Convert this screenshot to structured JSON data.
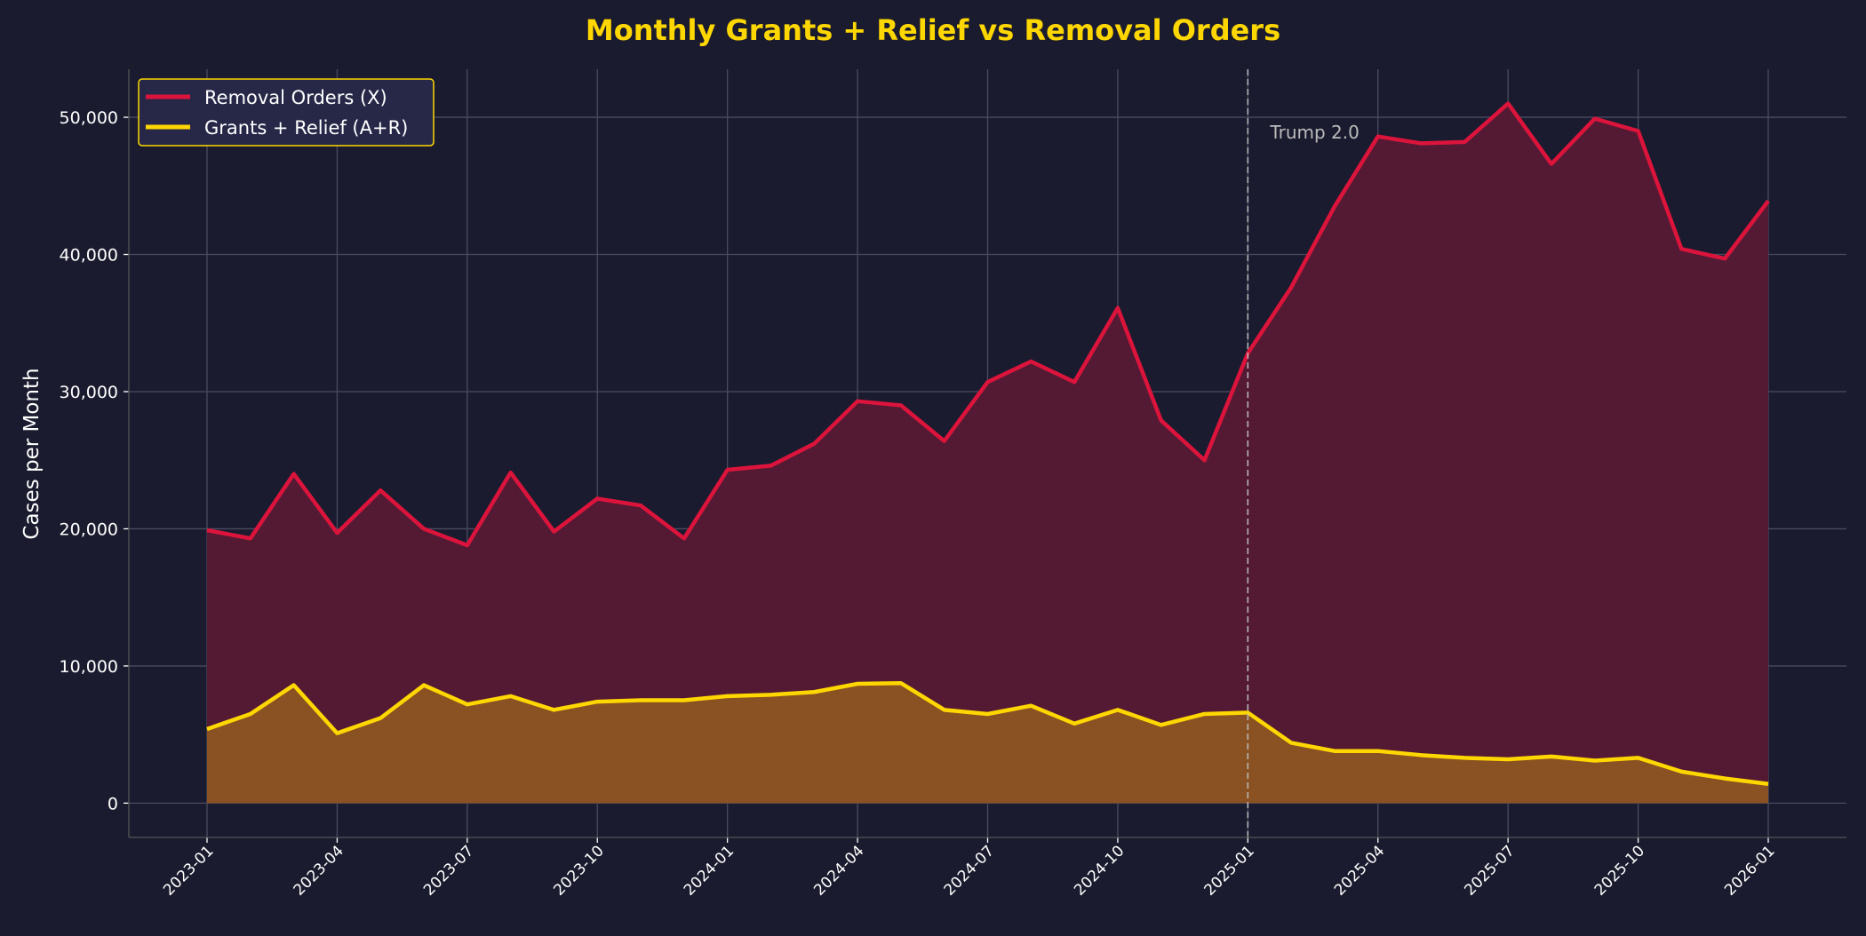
{
  "chart_data": {
    "type": "area",
    "title": "Monthly Grants + Relief vs Removal Orders",
    "xlabel": "",
    "ylabel": "Cases per Month",
    "ylim": [
      -2500,
      53500
    ],
    "yticks": [
      0,
      10000,
      20000,
      30000,
      40000,
      50000
    ],
    "ytick_labels": [
      "0",
      "10,000",
      "20,000",
      "30,000",
      "40,000",
      "50,000"
    ],
    "xtick_labels": [
      "2023-01",
      "2023-04",
      "2023-07",
      "2023-10",
      "2024-01",
      "2024-04",
      "2024-07",
      "2024-10",
      "2025-01",
      "2025-04",
      "2025-07",
      "2025-10",
      "2026-01"
    ],
    "grid": true,
    "legend_position": "top-left",
    "x": [
      "2023-01",
      "2023-02",
      "2023-03",
      "2023-04",
      "2023-05",
      "2023-06",
      "2023-07",
      "2023-08",
      "2023-09",
      "2023-10",
      "2023-11",
      "2023-12",
      "2024-01",
      "2024-02",
      "2024-03",
      "2024-04",
      "2024-05",
      "2024-06",
      "2024-07",
      "2024-08",
      "2024-09",
      "2024-10",
      "2024-11",
      "2024-12",
      "2025-01",
      "2025-02",
      "2025-03",
      "2025-04",
      "2025-05",
      "2025-06",
      "2025-07",
      "2025-08",
      "2025-09",
      "2025-10",
      "2025-11",
      "2025-12",
      "2026-01"
    ],
    "series": [
      {
        "name": "Removal Orders (X)",
        "color": "#dc143c",
        "fill": "#541a34",
        "values": [
          19900,
          19300,
          24000,
          19700,
          22800,
          20000,
          18800,
          24100,
          19800,
          22200,
          21700,
          19300,
          24300,
          24600,
          26200,
          29300,
          29000,
          26400,
          30700,
          32200,
          30700,
          36100,
          27900,
          25000,
          32800,
          37600,
          43500,
          48600,
          48100,
          48200,
          51000,
          46600,
          49900,
          49000,
          40400,
          39700,
          43900
        ]
      },
      {
        "name": "Grants + Relief (A+R)",
        "color": "#ffd700",
        "fill": "#8a5222",
        "values": [
          5400,
          6500,
          8600,
          5100,
          6200,
          8600,
          7200,
          7800,
          6800,
          7400,
          7500,
          7500,
          7800,
          7900,
          8100,
          8700,
          8750,
          6800,
          6500,
          7100,
          5800,
          6800,
          5700,
          6500,
          6600,
          4400,
          3800,
          3800,
          3500,
          3300,
          3200,
          3400,
          3100,
          3300,
          2300,
          1800,
          1400
        ]
      }
    ],
    "annotations": [
      {
        "label": "Trump 2.0",
        "x": "2025-01",
        "style": "dashed vertical line"
      }
    ]
  },
  "colors": {
    "background": "#1a1b2e",
    "title": "#ffd700",
    "legend_border": "#ffd700",
    "legend_bg": "#272848",
    "grid": "#4a4b60"
  }
}
